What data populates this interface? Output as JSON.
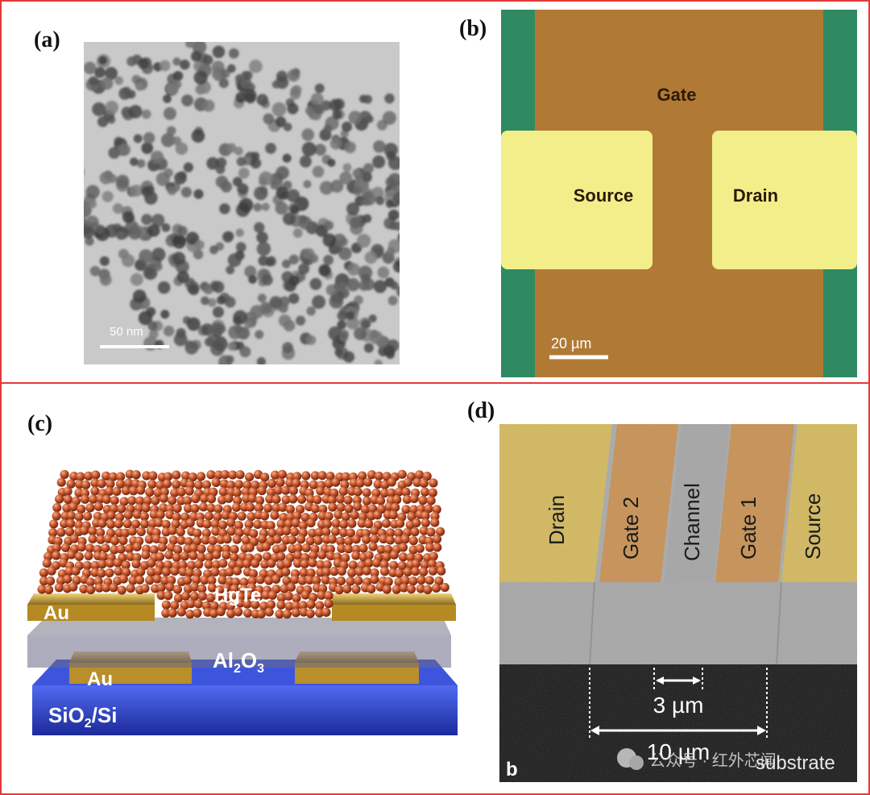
{
  "panels": {
    "a": {
      "label": "(a)",
      "scale_bar": "50 nm"
    },
    "b": {
      "label": "(b)",
      "gate": "Gate",
      "source": "Source",
      "drain": "Drain",
      "scale_bar": "20 µm"
    },
    "c": {
      "label": "(c)",
      "au_top": "Au",
      "hgte": "HgTe",
      "al2o3_main": "Al",
      "al2o3_sub": "2",
      "al2o3_o": "O",
      "al2o3_sub2": "3",
      "au_bottom": "Au",
      "sio2_main": "SiO",
      "sio2_sub": "2",
      "sio2_rest": "/Si"
    },
    "d": {
      "label": "(d)",
      "strips": [
        "Drain",
        "Gate 2",
        "Channel",
        "Gate 1",
        "Source"
      ],
      "dim_small": "3 µm",
      "dim_large": "10 µm",
      "corner_label": "b",
      "substrate": "substrate",
      "watermark": "公众号 · 红外芯闻"
    }
  },
  "colors": {
    "frame": "#e23a3a",
    "gate_brown": "#b07a35",
    "electrode_yellow": "#f2ee8a",
    "substrate_green": "#2f8a62",
    "dot_orange": "#c8562c",
    "gold": "#c9a23a",
    "sio2_blue": "#2a43c8"
  }
}
